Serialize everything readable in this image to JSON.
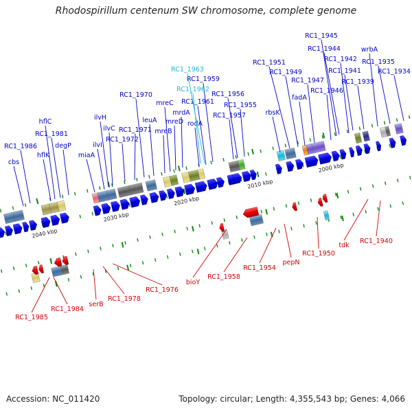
{
  "title": "Rhodospirillum centenum SW chromosome, complete genome",
  "footer": {
    "accession": "Accession: NC_011420",
    "topology": "Topology: circular; Length: 4,355,543 bp; Genes: 4,066"
  },
  "colors": {
    "forward_label": "#0000c8",
    "reverse_label": "#d00000",
    "highlight_label": "#1ab6d6",
    "forward_gene": "#0000ee",
    "reverse_gene": "#ee0000",
    "axis": "#555555",
    "tick": "#118811"
  },
  "scale_labels": [
    "2040 kbp",
    "2030 kbp",
    "2020 kbp",
    "2010 kbp",
    "2000 kbp"
  ],
  "forward_labels": [
    "cbs",
    "RC1_1986",
    "hflK",
    "hflC",
    "RC1_1981",
    "degP",
    "miaA",
    "ilvI",
    "ilvH",
    "ilvC",
    "RC1_1972",
    "RC1_1971",
    "RC1_1970",
    "leuA",
    "mreB",
    "mreC",
    "mreD",
    "mrdA",
    "RC1_1961",
    "rodA",
    "RC1_1959",
    "RC1_1957",
    "RC1_1956",
    "RC1_1955",
    "rbsK",
    "RC1_1951",
    "RC1_1949",
    "fadA",
    "RC1_1947",
    "RC1_1946",
    "RC1_1945",
    "RC1_1944",
    "RC1_1942",
    "RC1_1941",
    "RC1_1939",
    "wrbA",
    "RC1_1935",
    "RC1_1934"
  ],
  "highlight_labels": [
    "RC1_1963",
    "RC1_1962"
  ],
  "reverse_labels": [
    "RC1_1985",
    "RC1_1984",
    "serB",
    "RC1_1978",
    "RC1_1976",
    "bioY",
    "RC1_1958",
    "RC1_1954",
    "pepN",
    "RC1_1950",
    "tdk",
    "RC1_1940"
  ]
}
